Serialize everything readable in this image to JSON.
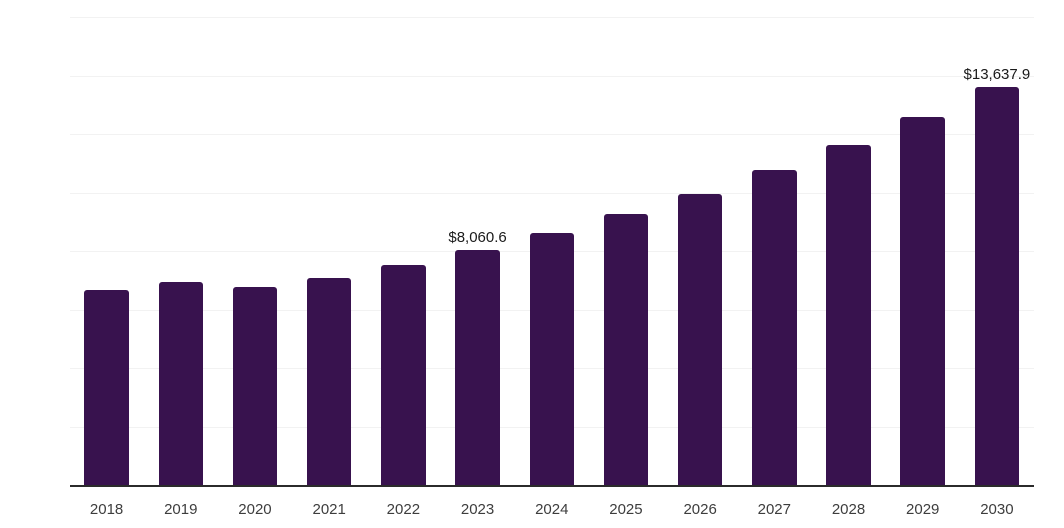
{
  "chart_data": {
    "type": "bar",
    "title": "",
    "xlabel": "",
    "ylabel": "",
    "categories": [
      "2018",
      "2019",
      "2020",
      "2021",
      "2022",
      "2023",
      "2024",
      "2025",
      "2026",
      "2027",
      "2028",
      "2029",
      "2030"
    ],
    "values": [
      6700,
      6950,
      6800,
      7100,
      7540,
      8060.6,
      8640,
      9290,
      9980,
      10780,
      11650,
      12590,
      13637.9
    ],
    "data_labels": [
      {
        "category": "2023",
        "text": "$8,060.6"
      },
      {
        "category": "2030",
        "text": "$13,637.9"
      }
    ],
    "ylim": [
      0,
      16000
    ],
    "gridline_step": 2000,
    "grid": "horizontal-only",
    "y_axis_labels_visible": false,
    "legend": "none",
    "colors": {
      "bar": "#38124E",
      "gridline": "#f2f2f2",
      "axis_line": "#2b2b2b",
      "data_label_text": "#1a1a1a",
      "tick_label_text": "#3d3d3d",
      "background": "#ffffff"
    }
  }
}
